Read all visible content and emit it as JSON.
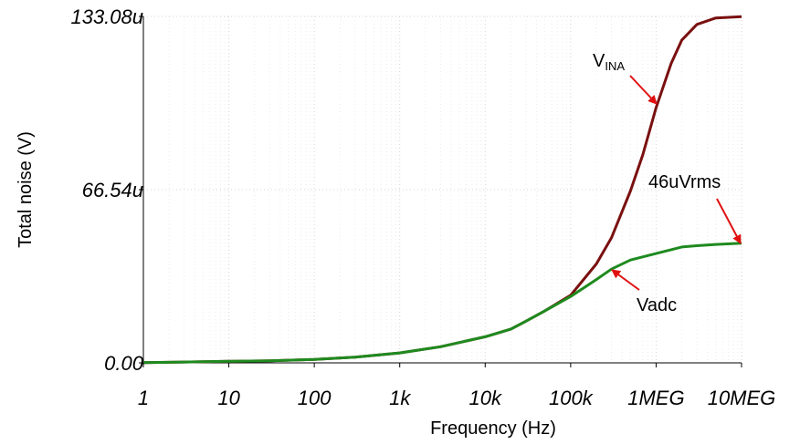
{
  "chart_data": {
    "type": "line",
    "xlabel": "Frequency (Hz)",
    "ylabel": "Total noise (V)",
    "x_scale": "log",
    "xlim": [
      1,
      10000000
    ],
    "ylim": [
      0,
      133.08
    ],
    "x_ticks": [
      {
        "value": 1,
        "label": "1"
      },
      {
        "value": 10,
        "label": "10"
      },
      {
        "value": 100,
        "label": "100"
      },
      {
        "value": 1000,
        "label": "1k"
      },
      {
        "value": 10000,
        "label": "10k"
      },
      {
        "value": 100000,
        "label": "100k"
      },
      {
        "value": 1000000,
        "label": "1MEG"
      },
      {
        "value": 10000000,
        "label": "10MEG"
      }
    ],
    "y_ticks": [
      {
        "value": 0,
        "label": "0.00"
      },
      {
        "value": 66.54,
        "label": "66.54u"
      },
      {
        "value": 133.08,
        "label": "133.08u"
      }
    ],
    "grid": true,
    "series": [
      {
        "name": "VINA",
        "color": "#7a1010",
        "points": [
          [
            1,
            0.1
          ],
          [
            3,
            0.3
          ],
          [
            10,
            0.6
          ],
          [
            30,
            0.8
          ],
          [
            100,
            1.3
          ],
          [
            300,
            2.2
          ],
          [
            1000,
            3.8
          ],
          [
            3000,
            6.2
          ],
          [
            10000,
            10
          ],
          [
            20000,
            13
          ],
          [
            30000,
            16
          ],
          [
            50000,
            20
          ],
          [
            100000,
            26
          ],
          [
            200000,
            38
          ],
          [
            300000,
            48
          ],
          [
            500000,
            66
          ],
          [
            700000,
            80
          ],
          [
            1000000,
            98
          ],
          [
            1500000,
            115
          ],
          [
            2000000,
            124
          ],
          [
            3000000,
            130
          ],
          [
            5000000,
            132.5
          ],
          [
            10000000,
            133
          ]
        ]
      },
      {
        "name": "Vadc",
        "color": "#1e8a1e",
        "points": [
          [
            1,
            0.1
          ],
          [
            3,
            0.3
          ],
          [
            10,
            0.6
          ],
          [
            30,
            0.8
          ],
          [
            100,
            1.3
          ],
          [
            300,
            2.2
          ],
          [
            1000,
            3.8
          ],
          [
            3000,
            6.2
          ],
          [
            10000,
            10
          ],
          [
            20000,
            13
          ],
          [
            30000,
            16
          ],
          [
            50000,
            20
          ],
          [
            100000,
            25.5
          ],
          [
            200000,
            32
          ],
          [
            300000,
            36
          ],
          [
            500000,
            39.5
          ],
          [
            1000000,
            42
          ],
          [
            2000000,
            44.5
          ],
          [
            3000000,
            45
          ],
          [
            5000000,
            45.5
          ],
          [
            10000000,
            46
          ]
        ]
      }
    ],
    "annotations": {
      "vina_main": "V",
      "vina_sub": "INA",
      "vrms": "46uVrms",
      "vadc": "Vadc"
    },
    "arrow_color": "#e01010"
  }
}
